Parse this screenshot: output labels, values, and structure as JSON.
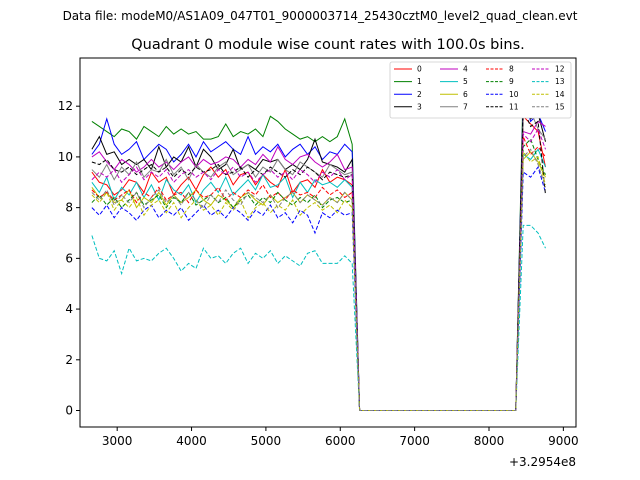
{
  "chart_data": {
    "type": "line",
    "suptitle": "Data file: modeM0/AS1A09_047T01_9000003714_25430cztM0_level2_quad_clean.evt",
    "title": "Quadrant 0 module wise count rates with 100.0s bins.",
    "xlabel": "",
    "ylabel": "",
    "x_offset_label": "+3.2954e8",
    "xlim": [
      2500,
      9170
    ],
    "ylim": [
      -0.65,
      13.9
    ],
    "x_ticks": [
      3000,
      4000,
      5000,
      6000,
      7000,
      8000,
      9000
    ],
    "y_ticks": [
      0,
      2,
      4,
      6,
      8,
      10,
      12
    ],
    "x": [
      2660,
      2760,
      2860,
      2960,
      3060,
      3160,
      3260,
      3360,
      3460,
      3560,
      3660,
      3760,
      3860,
      3960,
      4060,
      4160,
      4260,
      4360,
      4460,
      4560,
      4660,
      4760,
      4860,
      4960,
      5060,
      5160,
      5260,
      5360,
      5460,
      5560,
      5660,
      5760,
      5860,
      5960,
      6060,
      6160,
      6260,
      6360,
      6460,
      6560,
      6660,
      6760,
      6860,
      6960,
      7060,
      7160,
      7260,
      7360,
      7460,
      7560,
      7660,
      7760,
      7860,
      7960,
      8060,
      8160,
      8260,
      8360,
      8460,
      8560,
      8660,
      8760,
      8860
    ],
    "gap": {
      "start_index": 35,
      "end_index": 57,
      "value": 0.0
    },
    "legend_position": "top-right",
    "legend_columns": 4,
    "series": [
      {
        "name": "0",
        "color": "#ff0000",
        "dash": "solid",
        "head": [
          9.4,
          9.0,
          8.9,
          8.5,
          8.7,
          9.1,
          9.0,
          8.6,
          9.4,
          9.0,
          9.2,
          8.5,
          8.9,
          9.2,
          8.7,
          9.3,
          9.6,
          9.2,
          9.5,
          8.9,
          9.3,
          9.4,
          8.9,
          9.3,
          9.0,
          8.8,
          9.5,
          8.6,
          9.0,
          9.1,
          8.8,
          9.5,
          9.0,
          9.2,
          9.1,
          8.9
        ],
        "tail": [
          11.6,
          11.3,
          11.0,
          9.6
        ]
      },
      {
        "name": "1",
        "color": "#008000",
        "dash": "solid",
        "head": [
          11.4,
          11.2,
          11.0,
          10.8,
          11.1,
          11.0,
          10.7,
          11.2,
          11.0,
          10.8,
          11.2,
          10.9,
          11.1,
          10.9,
          11.0,
          10.7,
          10.7,
          10.8,
          11.3,
          10.8,
          11.0,
          10.9,
          11.1,
          10.8,
          11.6,
          11.4,
          11.1,
          10.9,
          10.7,
          10.8,
          10.6,
          10.8,
          10.6,
          10.8,
          11.5,
          10.5
        ],
        "tail": [
          12.9,
          13.3,
          12.6,
          12.2
        ]
      },
      {
        "name": "2",
        "color": "#0000ff",
        "dash": "solid",
        "head": [
          10.1,
          10.5,
          11.5,
          10.5,
          10.1,
          10.3,
          10.6,
          9.9,
          10.2,
          10.5,
          10.3,
          9.8,
          10.1,
          10.5,
          10.0,
          10.6,
          10.2,
          10.4,
          10.6,
          10.3,
          10.1,
          10.8,
          10.1,
          10.4,
          10.2,
          10.5,
          10.0,
          10.3,
          10.5,
          10.1,
          10.4,
          9.9,
          10.2,
          10.1,
          10.5,
          10.2
        ],
        "tail": [
          12.4,
          11.4,
          11.7,
          11.0
        ]
      },
      {
        "name": "3",
        "color": "#000000",
        "dash": "solid",
        "head": [
          10.3,
          10.8,
          10.1,
          10.2,
          9.7,
          9.9,
          9.7,
          9.9,
          9.5,
          10.4,
          9.6,
          10.0,
          9.8,
          10.4,
          9.6,
          10.3,
          10.0,
          9.5,
          9.7,
          10.3,
          9.5,
          9.7,
          9.5,
          9.9,
          9.8,
          9.9,
          9.5,
          9.7,
          9.5,
          9.9,
          10.7,
          9.8,
          9.7,
          9.6,
          9.4,
          9.9
        ],
        "tail": [
          12.2,
          11.5,
          11.7,
          10.6
        ]
      },
      {
        "name": "4",
        "color": "#bf00bf",
        "dash": "solid",
        "head": [
          10.0,
          10.2,
          9.8,
          9.5,
          9.9,
          9.7,
          9.4,
          9.6,
          9.9,
          9.6,
          9.8,
          9.5,
          9.8,
          10.0,
          9.6,
          9.9,
          9.7,
          9.8,
          10.0,
          9.9,
          9.6,
          9.9,
          9.7,
          10.1,
          9.8,
          10.4,
          9.9,
          9.7,
          10.0,
          10.1,
          9.8,
          9.6,
          9.8,
          10.1,
          9.5,
          9.6
        ],
        "tail": [
          11.0,
          10.9,
          11.4,
          11.2
        ]
      },
      {
        "name": "5",
        "color": "#00bfbf",
        "dash": "solid",
        "head": [
          9.0,
          8.6,
          9.2,
          8.3,
          8.8,
          8.5,
          9.0,
          8.4,
          8.9,
          8.3,
          9.1,
          8.7,
          8.5,
          8.9,
          8.2,
          8.7,
          9.0,
          8.6,
          9.2,
          8.5,
          8.8,
          9.1,
          8.7,
          9.3,
          8.8,
          8.9,
          9.2,
          8.4,
          9.0,
          8.6,
          9.1,
          8.9,
          9.0,
          8.8,
          9.1,
          8.8
        ],
        "tail": [
          10.1,
          9.9,
          10.3,
          9.6
        ]
      },
      {
        "name": "6",
        "color": "#bfbf00",
        "dash": "solid",
        "head": [
          8.8,
          8.4,
          8.6,
          8.2,
          8.3,
          8.7,
          8.0,
          8.4,
          8.2,
          8.6,
          8.1,
          8.5,
          8.2,
          8.4,
          8.7,
          8.3,
          8.1,
          8.5,
          8.3,
          8.0,
          8.4,
          8.6,
          8.3,
          8.1,
          8.5,
          8.2,
          8.4,
          8.6,
          8.2,
          8.5,
          8.3,
          8.1,
          8.4,
          8.2,
          8.6,
          8.3
        ],
        "tail": [
          9.9,
          10.2,
          9.8,
          9.2
        ]
      },
      {
        "name": "7",
        "color": "#808080",
        "dash": "solid",
        "head": [
          9.5,
          9.2,
          9.7,
          9.1,
          9.6,
          9.3,
          9.8,
          9.2,
          9.5,
          9.4,
          9.9,
          9.3,
          9.6,
          9.1,
          9.7,
          9.4,
          9.2,
          9.6,
          9.8,
          9.3,
          9.5,
          9.7,
          9.2,
          9.6,
          9.4,
          9.9,
          9.5,
          9.3,
          9.8,
          9.6,
          9.4,
          9.2,
          9.7,
          9.5,
          9.3,
          9.4
        ],
        "tail": [
          11.6,
          11.8,
          11.1,
          10.7
        ]
      },
      {
        "name": "8",
        "color": "#ff0000",
        "dash": "dash",
        "head": [
          8.7,
          8.4,
          8.6,
          8.3,
          8.5,
          8.7,
          8.2,
          8.6,
          8.4,
          8.8,
          8.3,
          8.5,
          8.6,
          8.2,
          8.7,
          8.4,
          8.5,
          8.8,
          8.3,
          8.6,
          8.4,
          8.7,
          8.5,
          8.9,
          8.4,
          8.6,
          8.3,
          8.7,
          8.5,
          8.6,
          8.4,
          8.8,
          8.5,
          8.7,
          8.4,
          8.6
        ],
        "tail": [
          10.8,
          10.1,
          10.4,
          10.0
        ]
      },
      {
        "name": "9",
        "color": "#008000",
        "dash": "dash",
        "head": [
          8.2,
          8.5,
          8.1,
          8.4,
          8.0,
          8.3,
          8.6,
          8.1,
          8.3,
          8.5,
          8.0,
          8.4,
          8.2,
          8.6,
          8.1,
          8.3,
          8.5,
          8.2,
          8.4,
          8.0,
          8.3,
          8.5,
          8.1,
          8.4,
          8.2,
          8.6,
          8.3,
          8.1,
          8.4,
          8.2,
          8.5,
          8.0,
          8.3,
          8.4,
          8.2,
          8.3
        ],
        "tail": [
          10.4,
          10.7,
          9.9,
          9.3
        ]
      },
      {
        "name": "10",
        "color": "#0000ff",
        "dash": "dash",
        "head": [
          8.0,
          7.7,
          8.1,
          7.6,
          8.0,
          7.8,
          7.5,
          7.9,
          8.1,
          7.6,
          7.9,
          7.7,
          8.0,
          7.5,
          7.8,
          8.1,
          7.7,
          7.9,
          7.6,
          8.0,
          7.8,
          7.5,
          7.9,
          7.7,
          8.1,
          7.6,
          7.8,
          7.4,
          7.9,
          7.7,
          7.0,
          7.8,
          7.6,
          7.9,
          7.7,
          7.8
        ],
        "tail": [
          9.4,
          9.2,
          9.6,
          8.6
        ]
      },
      {
        "name": "11",
        "color": "#000000",
        "dash": "dash",
        "head": [
          9.8,
          9.7,
          9.9,
          9.5,
          9.4,
          9.6,
          9.3,
          9.5,
          9.7,
          9.4,
          9.6,
          9.2,
          9.5,
          9.3,
          9.6,
          9.4,
          9.5,
          9.7,
          9.3,
          9.4,
          9.6,
          9.2,
          9.5,
          9.3,
          9.6,
          9.4,
          9.2,
          9.5,
          9.3,
          9.6,
          9.4,
          9.1,
          9.4,
          9.3,
          9.2,
          9.3
        ],
        "tail": [
          11.9,
          11.2,
          11.4,
          8.5
        ]
      },
      {
        "name": "12",
        "color": "#bf00bf",
        "dash": "dash",
        "head": [
          9.1,
          9.4,
          9.2,
          9.5,
          9.0,
          9.3,
          9.6,
          9.1,
          9.4,
          9.2,
          9.5,
          9.0,
          9.3,
          9.5,
          9.2,
          9.4,
          9.1,
          9.5,
          9.3,
          9.6,
          9.2,
          9.4,
          9.0,
          9.3,
          9.5,
          9.2,
          9.4,
          9.1,
          9.5,
          9.3,
          9.0,
          9.4,
          9.2,
          9.5,
          9.1,
          9.3
        ],
        "tail": [
          10.9,
          10.6,
          11.1,
          10.3
        ]
      },
      {
        "name": "13",
        "color": "#00bfbf",
        "dash": "dash",
        "head": [
          6.9,
          6.0,
          5.9,
          6.3,
          5.4,
          6.4,
          5.9,
          6.0,
          5.9,
          6.2,
          6.4,
          6.0,
          5.5,
          5.8,
          5.6,
          6.4,
          6.0,
          6.1,
          5.8,
          6.2,
          6.4,
          5.8,
          6.2,
          6.0,
          6.3,
          5.8,
          6.1,
          5.9,
          5.7,
          6.2,
          6.3,
          5.8,
          5.8,
          5.8,
          6.1,
          5.8
        ],
        "tail": [
          7.3,
          7.3,
          7.0,
          6.4
        ]
      },
      {
        "name": "14",
        "color": "#bfbf00",
        "dash": "dash",
        "head": [
          8.5,
          8.2,
          8.6,
          7.9,
          8.3,
          8.0,
          8.4,
          7.7,
          8.1,
          8.3,
          7.8,
          8.2,
          7.6,
          8.0,
          8.3,
          7.9,
          8.1,
          7.7,
          8.2,
          7.9,
          8.3,
          7.6,
          8.0,
          8.2,
          7.8,
          8.1,
          7.9,
          8.3,
          7.7,
          8.0,
          8.2,
          7.9,
          8.1,
          7.8,
          8.3,
          8.0
        ],
        "tail": [
          10.2,
          9.8,
          10.0,
          8.9
        ]
      },
      {
        "name": "15",
        "color": "#808080",
        "dash": "dash",
        "head": [
          8.6,
          8.3,
          8.7,
          8.1,
          8.5,
          8.2,
          8.6,
          8.0,
          8.4,
          8.7,
          8.2,
          8.5,
          8.1,
          8.6,
          8.3,
          8.0,
          8.5,
          8.2,
          8.7,
          8.3,
          8.1,
          8.6,
          8.4,
          8.2,
          8.5,
          8.0,
          8.4,
          8.6,
          8.2,
          8.5,
          8.3,
          8.1,
          8.4,
          8.2,
          8.6,
          8.3
        ],
        "tail": [
          10.0,
          10.3,
          9.7,
          8.8
        ]
      }
    ]
  }
}
